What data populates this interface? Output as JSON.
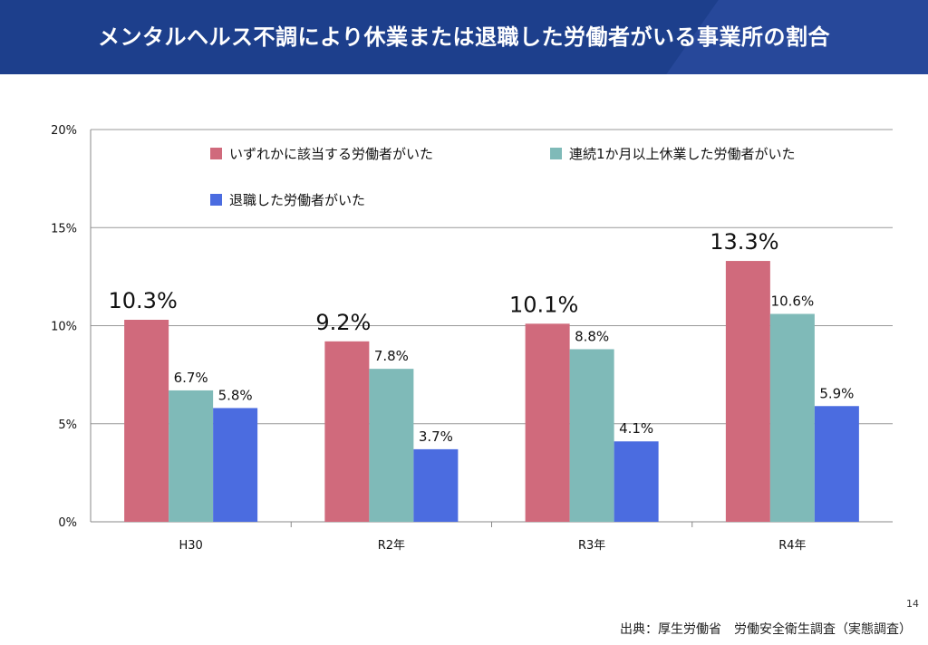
{
  "header": {
    "title": "メンタルヘルス不調により休業または退職した労働者がいる事業所の割合"
  },
  "chart_data": {
    "type": "bar",
    "title": "",
    "xlabel": "",
    "ylabel": "",
    "ylim": [
      0,
      20
    ],
    "yticks": [
      "0%",
      "5%",
      "10%",
      "15%",
      "20%"
    ],
    "grid": true,
    "legend_position": "top",
    "categories": [
      "H30",
      "R2年",
      "R3年",
      "R4年"
    ],
    "series": [
      {
        "name": "いずれかに該当する労働者がいた",
        "color": "#d06a7c",
        "values": [
          10.3,
          9.2,
          10.1,
          13.3
        ],
        "labels": [
          "10.3%",
          "9.2%",
          "10.1%",
          "13.3%"
        ]
      },
      {
        "name": "連続1か月以上休業した労働者がいた",
        "color": "#7fbab8",
        "values": [
          6.7,
          7.8,
          8.8,
          10.6
        ],
        "labels": [
          "6.7%",
          "7.8%",
          "8.8%",
          "10.6%"
        ]
      },
      {
        "name": "退職した労働者がいた",
        "color": "#4b6ce0",
        "values": [
          5.8,
          3.7,
          4.1,
          5.9
        ],
        "labels": [
          "5.8%",
          "3.7%",
          "4.1%",
          "5.9%"
        ]
      }
    ]
  },
  "page_number": "14",
  "source": "出典：厚生労働省　労働安全衛生調査（実態調査）"
}
